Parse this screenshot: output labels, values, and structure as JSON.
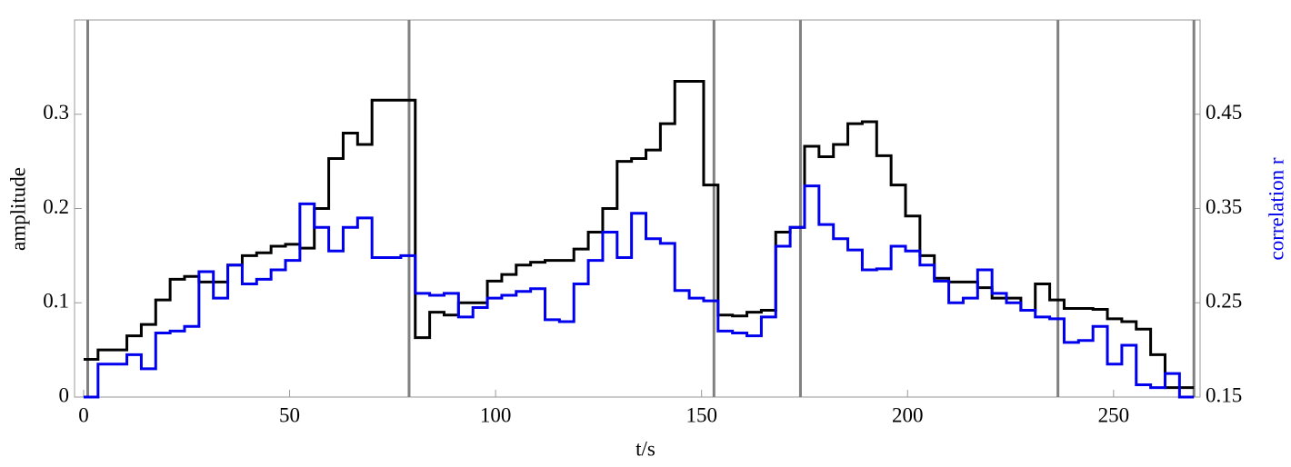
{
  "chart_data": {
    "type": "line",
    "step": "post",
    "xlabel": "t/s",
    "ylabel": "amplitude",
    "y2label": "correlation r",
    "x": [
      0,
      3.5,
      7,
      10.5,
      14,
      17.5,
      21,
      24.5,
      28,
      31.5,
      35,
      38.5,
      42,
      45.5,
      49,
      52.5,
      56,
      59.5,
      63,
      66.5,
      70,
      73.5,
      77,
      80.5,
      84,
      87.5,
      91,
      94.5,
      98,
      101.5,
      105,
      108.5,
      112,
      115.5,
      119,
      122.5,
      126,
      129.5,
      133,
      136.5,
      140,
      143.5,
      147,
      150.5,
      154,
      157.5,
      161,
      164.5,
      168,
      171.5,
      175,
      178.5,
      182,
      185.5,
      189,
      192.5,
      196,
      199.5,
      203,
      206.5,
      210,
      213.5,
      217,
      220.5,
      224,
      227.5,
      231,
      234.5,
      238,
      241.5,
      245,
      248.5,
      252,
      255.5,
      259,
      262.5,
      266,
      269.5
    ],
    "series": [
      {
        "name": "amplitude",
        "color": "#000000",
        "values": [
          0.04,
          0.05,
          0.05,
          0.065,
          0.077,
          0.103,
          0.125,
          0.128,
          0.122,
          0.122,
          0.14,
          0.15,
          0.153,
          0.16,
          0.162,
          0.158,
          0.2,
          0.253,
          0.28,
          0.268,
          0.315,
          0.315,
          0.315,
          0.063,
          0.09,
          0.087,
          0.1,
          0.1,
          0.123,
          0.13,
          0.14,
          0.143,
          0.145,
          0.145,
          0.157,
          0.175,
          0.2,
          0.25,
          0.253,
          0.262,
          0.29,
          0.335,
          0.335,
          0.225,
          0.087,
          0.086,
          0.09,
          0.092,
          0.175,
          0.18,
          0.266,
          0.255,
          0.268,
          0.29,
          0.292,
          0.256,
          0.225,
          0.192,
          0.15,
          0.126,
          0.122,
          0.122,
          0.116,
          0.105,
          0.105,
          0.092,
          0.12,
          0.103,
          0.094,
          0.094,
          0.093,
          0.083,
          0.08,
          0.072,
          0.045,
          0.01,
          0.01,
          0.01
        ]
      },
      {
        "name": "correlation r",
        "color": "#0000ee",
        "axis": "y2",
        "values": [
          0.15,
          0.185,
          0.185,
          0.195,
          0.18,
          0.218,
          0.22,
          0.225,
          0.283,
          0.255,
          0.29,
          0.27,
          0.275,
          0.285,
          0.295,
          0.355,
          0.33,
          0.305,
          0.33,
          0.34,
          0.298,
          0.298,
          0.3,
          0.26,
          0.258,
          0.26,
          0.235,
          0.245,
          0.255,
          0.258,
          0.262,
          0.265,
          0.232,
          0.23,
          0.27,
          0.295,
          0.325,
          0.298,
          0.345,
          0.318,
          0.313,
          0.263,
          0.255,
          0.252,
          0.22,
          0.218,
          0.215,
          0.235,
          0.31,
          0.33,
          0.374,
          0.333,
          0.318,
          0.306,
          0.285,
          0.286,
          0.31,
          0.305,
          0.29,
          0.273,
          0.25,
          0.255,
          0.285,
          0.26,
          0.25,
          0.242,
          0.235,
          0.233,
          0.208,
          0.21,
          0.225,
          0.185,
          0.205,
          0.163,
          0.16,
          0.175,
          0.15,
          0.15
        ]
      }
    ],
    "vlines": [
      1,
      79,
      153,
      174,
      236.5,
      269.5
    ],
    "vline_color": "#808080",
    "xlim": [
      -2.2,
      271
    ],
    "xticks": [
      0,
      50,
      100,
      150,
      200,
      250
    ],
    "ylim": [
      0,
      0.4
    ],
    "yticks": [
      0,
      0.1,
      0.2,
      0.3
    ],
    "y2lim": [
      0.15,
      0.55
    ],
    "y2ticks": [
      0.15,
      0.25,
      0.35,
      0.45
    ]
  }
}
